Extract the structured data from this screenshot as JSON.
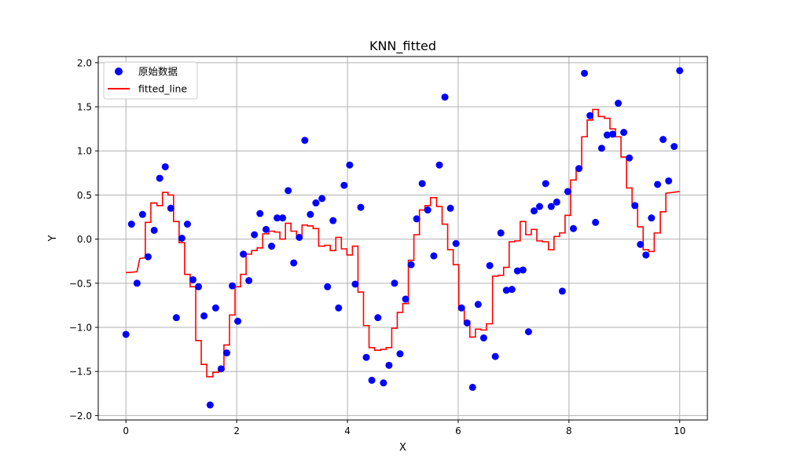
{
  "chart_data": {
    "type": "scatter",
    "title": "KNN_fitted",
    "xlabel": "X",
    "ylabel": "Y",
    "xlim": [
      -0.5,
      10.5
    ],
    "ylim": [
      -2.05,
      2.07
    ],
    "xticks": [
      0,
      2,
      4,
      6,
      8,
      10
    ],
    "yticks": [
      -2.0,
      -1.5,
      -1.0,
      -0.5,
      0.0,
      0.5,
      1.0,
      1.5,
      2.0
    ],
    "grid": true,
    "legend_position": "top-left",
    "series": [
      {
        "name": "原始数据",
        "kind": "scatter",
        "color": "#0000ff",
        "points": [
          [
            0.0,
            -1.08
          ],
          [
            0.1,
            0.17
          ],
          [
            0.2,
            -0.5
          ],
          [
            0.3,
            0.28
          ],
          [
            0.4,
            -0.2
          ],
          [
            0.51,
            0.1
          ],
          [
            0.61,
            0.69
          ],
          [
            0.71,
            0.82
          ],
          [
            0.81,
            0.35
          ],
          [
            0.91,
            -0.89
          ],
          [
            1.01,
            0.01
          ],
          [
            1.11,
            0.17
          ],
          [
            1.21,
            -0.46
          ],
          [
            1.31,
            -0.54
          ],
          [
            1.41,
            -0.87
          ],
          [
            1.52,
            -1.88
          ],
          [
            1.62,
            -0.78
          ],
          [
            1.72,
            -1.47
          ],
          [
            1.82,
            -1.29
          ],
          [
            1.92,
            -0.53
          ],
          [
            2.02,
            -0.93
          ],
          [
            2.12,
            -0.17
          ],
          [
            2.22,
            -0.47
          ],
          [
            2.32,
            0.05
          ],
          [
            2.42,
            0.29
          ],
          [
            2.53,
            0.11
          ],
          [
            2.63,
            -0.08
          ],
          [
            2.73,
            0.24
          ],
          [
            2.83,
            0.24
          ],
          [
            2.93,
            0.55
          ],
          [
            3.03,
            -0.27
          ],
          [
            3.13,
            0.02
          ],
          [
            3.23,
            1.12
          ],
          [
            3.33,
            0.28
          ],
          [
            3.43,
            0.41
          ],
          [
            3.54,
            0.46
          ],
          [
            3.64,
            -0.54
          ],
          [
            3.74,
            0.21
          ],
          [
            3.84,
            -0.78
          ],
          [
            3.94,
            0.61
          ],
          [
            4.04,
            0.84
          ],
          [
            4.14,
            -0.51
          ],
          [
            4.24,
            0.36
          ],
          [
            4.34,
            -1.34
          ],
          [
            4.44,
            -1.6
          ],
          [
            4.55,
            -0.89
          ],
          [
            4.65,
            -1.63
          ],
          [
            4.75,
            -1.43
          ],
          [
            4.85,
            -0.5
          ],
          [
            4.95,
            -1.3
          ],
          [
            5.05,
            -0.68
          ],
          [
            5.15,
            -0.29
          ],
          [
            5.25,
            0.23
          ],
          [
            5.35,
            0.63
          ],
          [
            5.45,
            0.33
          ],
          [
            5.56,
            -0.19
          ],
          [
            5.66,
            0.84
          ],
          [
            5.76,
            1.61
          ],
          [
            5.86,
            0.35
          ],
          [
            5.96,
            -0.05
          ],
          [
            6.06,
            -0.78
          ],
          [
            6.16,
            -0.95
          ],
          [
            6.26,
            -1.68
          ],
          [
            6.36,
            -0.74
          ],
          [
            6.46,
            -1.12
          ],
          [
            6.57,
            -0.3
          ],
          [
            6.67,
            -1.33
          ],
          [
            6.77,
            0.07
          ],
          [
            6.87,
            -0.58
          ],
          [
            6.97,
            -0.57
          ],
          [
            7.07,
            -0.36
          ],
          [
            7.17,
            -0.35
          ],
          [
            7.27,
            -1.05
          ],
          [
            7.37,
            0.32
          ],
          [
            7.47,
            0.37
          ],
          [
            7.58,
            0.63
          ],
          [
            7.68,
            0.37
          ],
          [
            7.78,
            0.42
          ],
          [
            7.88,
            -0.59
          ],
          [
            7.98,
            0.54
          ],
          [
            8.08,
            0.12
          ],
          [
            8.18,
            0.8
          ],
          [
            8.28,
            1.88
          ],
          [
            8.38,
            1.4
          ],
          [
            8.48,
            0.19
          ],
          [
            8.59,
            1.03
          ],
          [
            8.69,
            1.18
          ],
          [
            8.79,
            1.19
          ],
          [
            8.89,
            1.54
          ],
          [
            8.99,
            1.21
          ],
          [
            9.09,
            0.92
          ],
          [
            9.19,
            0.38
          ],
          [
            9.29,
            -0.06
          ],
          [
            9.39,
            -0.18
          ],
          [
            9.49,
            0.24
          ],
          [
            9.6,
            0.62
          ],
          [
            9.7,
            1.13
          ],
          [
            9.8,
            0.66
          ],
          [
            9.9,
            1.05
          ],
          [
            10.0,
            1.91
          ]
        ]
      },
      {
        "name": "fitted_line",
        "kind": "line",
        "color": "#ff0000",
        "points": [
          [
            0.0,
            -0.38
          ],
          [
            0.2,
            -0.37
          ],
          [
            0.25,
            -0.22
          ],
          [
            0.35,
            -0.21
          ],
          [
            0.35,
            0.19
          ],
          [
            0.45,
            0.19
          ],
          [
            0.45,
            0.41
          ],
          [
            0.56,
            0.41
          ],
          [
            0.56,
            0.38
          ],
          [
            0.66,
            0.38
          ],
          [
            0.66,
            0.53
          ],
          [
            0.76,
            0.53
          ],
          [
            0.76,
            0.5
          ],
          [
            0.86,
            0.5
          ],
          [
            0.86,
            0.2
          ],
          [
            0.96,
            0.2
          ],
          [
            0.96,
            -0.04
          ],
          [
            1.06,
            -0.04
          ],
          [
            1.06,
            -0.4
          ],
          [
            1.16,
            -0.4
          ],
          [
            1.16,
            -0.54
          ],
          [
            1.26,
            -0.54
          ],
          [
            1.26,
            -1.15
          ],
          [
            1.36,
            -1.15
          ],
          [
            1.36,
            -1.42
          ],
          [
            1.46,
            -1.42
          ],
          [
            1.46,
            -1.56
          ],
          [
            1.57,
            -1.56
          ],
          [
            1.57,
            -1.51
          ],
          [
            1.67,
            -1.51
          ],
          [
            1.67,
            -1.48
          ],
          [
            1.77,
            -1.48
          ],
          [
            1.77,
            -1.2
          ],
          [
            1.87,
            -1.2
          ],
          [
            1.87,
            -0.86
          ],
          [
            1.97,
            -0.86
          ],
          [
            1.97,
            -0.54
          ],
          [
            2.07,
            -0.54
          ],
          [
            2.07,
            -0.4
          ],
          [
            2.17,
            -0.4
          ],
          [
            2.17,
            -0.17
          ],
          [
            2.27,
            -0.17
          ],
          [
            2.27,
            -0.13
          ],
          [
            2.37,
            -0.13
          ],
          [
            2.37,
            -0.1
          ],
          [
            2.47,
            -0.1
          ],
          [
            2.47,
            0.06
          ],
          [
            2.58,
            0.06
          ],
          [
            2.58,
            0.09
          ],
          [
            2.68,
            0.09
          ],
          [
            2.68,
            0.08
          ],
          [
            2.78,
            0.08
          ],
          [
            2.78,
            0.0
          ],
          [
            2.88,
            0.0
          ],
          [
            2.88,
            0.18
          ],
          [
            2.98,
            0.18
          ],
          [
            2.98,
            0.09
          ],
          [
            3.08,
            0.09
          ],
          [
            3.08,
            0.04
          ],
          [
            3.18,
            0.04
          ],
          [
            3.18,
            0.16
          ],
          [
            3.28,
            0.16
          ],
          [
            3.28,
            0.15
          ],
          [
            3.38,
            0.15
          ],
          [
            3.38,
            0.12
          ],
          [
            3.48,
            0.12
          ],
          [
            3.48,
            -0.08
          ],
          [
            3.59,
            -0.08
          ],
          [
            3.59,
            -0.07
          ],
          [
            3.69,
            -0.07
          ],
          [
            3.69,
            -0.13
          ],
          [
            3.79,
            -0.13
          ],
          [
            3.79,
            0.02
          ],
          [
            3.89,
            0.02
          ],
          [
            3.89,
            -0.11
          ],
          [
            3.99,
            -0.11
          ],
          [
            3.99,
            -0.18
          ],
          [
            4.09,
            -0.18
          ],
          [
            4.09,
            -0.08
          ],
          [
            4.19,
            -0.08
          ],
          [
            4.19,
            -0.6
          ],
          [
            4.29,
            -0.6
          ],
          [
            4.29,
            -0.98
          ],
          [
            4.39,
            -0.98
          ],
          [
            4.39,
            -1.23
          ],
          [
            4.49,
            -1.23
          ],
          [
            4.49,
            -1.26
          ],
          [
            4.6,
            -1.26
          ],
          [
            4.6,
            -1.25
          ],
          [
            4.7,
            -1.25
          ],
          [
            4.7,
            -1.23
          ],
          [
            4.8,
            -1.23
          ],
          [
            4.8,
            -1.01
          ],
          [
            4.9,
            -1.01
          ],
          [
            4.9,
            -0.83
          ],
          [
            5.0,
            -0.83
          ],
          [
            5.0,
            -0.73
          ],
          [
            5.1,
            -0.73
          ],
          [
            5.1,
            -0.24
          ],
          [
            5.2,
            -0.24
          ],
          [
            5.2,
            0.05
          ],
          [
            5.3,
            0.05
          ],
          [
            5.3,
            0.33
          ],
          [
            5.4,
            0.33
          ],
          [
            5.4,
            0.38
          ],
          [
            5.5,
            0.38
          ],
          [
            5.5,
            0.47
          ],
          [
            5.61,
            0.47
          ],
          [
            5.61,
            0.37
          ],
          [
            5.71,
            0.37
          ],
          [
            5.71,
            0.17
          ],
          [
            5.81,
            0.17
          ],
          [
            5.81,
            -0.12
          ],
          [
            5.91,
            -0.12
          ],
          [
            5.91,
            -0.29
          ],
          [
            6.01,
            -0.29
          ],
          [
            6.01,
            -0.8
          ],
          [
            6.11,
            -0.8
          ],
          [
            6.11,
            -0.93
          ],
          [
            6.21,
            -0.93
          ],
          [
            6.21,
            -1.11
          ],
          [
            6.31,
            -1.11
          ],
          [
            6.31,
            -1.02
          ],
          [
            6.41,
            -1.02
          ],
          [
            6.41,
            -1.03
          ],
          [
            6.51,
            -1.03
          ],
          [
            6.51,
            -0.96
          ],
          [
            6.62,
            -0.96
          ],
          [
            6.62,
            -0.42
          ],
          [
            6.72,
            -0.42
          ],
          [
            6.72,
            -0.41
          ],
          [
            6.82,
            -0.41
          ],
          [
            6.82,
            -0.32
          ],
          [
            6.92,
            -0.32
          ],
          [
            6.92,
            -0.03
          ],
          [
            7.02,
            -0.03
          ],
          [
            7.02,
            -0.02
          ],
          [
            7.12,
            -0.02
          ],
          [
            7.12,
            0.2
          ],
          [
            7.22,
            0.2
          ],
          [
            7.22,
            0.05
          ],
          [
            7.32,
            0.05
          ],
          [
            7.32,
            0.11
          ],
          [
            7.42,
            0.11
          ],
          [
            7.42,
            -0.02
          ],
          [
            7.52,
            -0.02
          ],
          [
            7.52,
            -0.03
          ],
          [
            7.63,
            -0.03
          ],
          [
            7.63,
            -0.12
          ],
          [
            7.73,
            -0.12
          ],
          [
            7.73,
            0.03
          ],
          [
            7.83,
            0.03
          ],
          [
            7.83,
            0.07
          ],
          [
            7.93,
            0.07
          ],
          [
            7.93,
            0.27
          ],
          [
            8.03,
            0.27
          ],
          [
            8.03,
            0.67
          ],
          [
            8.13,
            0.67
          ],
          [
            8.13,
            0.81
          ],
          [
            8.23,
            0.81
          ],
          [
            8.23,
            1.16
          ],
          [
            8.33,
            1.16
          ],
          [
            8.33,
            1.35
          ],
          [
            8.43,
            1.35
          ],
          [
            8.43,
            1.47
          ],
          [
            8.53,
            1.47
          ],
          [
            8.53,
            1.39
          ],
          [
            8.64,
            1.39
          ],
          [
            8.64,
            1.37
          ],
          [
            8.74,
            1.37
          ],
          [
            8.74,
            1.25
          ],
          [
            8.84,
            1.25
          ],
          [
            8.84,
            1.16
          ],
          [
            8.94,
            1.16
          ],
          [
            8.94,
            0.93
          ],
          [
            9.04,
            0.93
          ],
          [
            9.04,
            0.58
          ],
          [
            9.14,
            0.58
          ],
          [
            9.14,
            0.4
          ],
          [
            9.24,
            0.4
          ],
          [
            9.24,
            0.14
          ],
          [
            9.34,
            0.14
          ],
          [
            9.34,
            -0.12
          ],
          [
            9.44,
            -0.12
          ],
          [
            9.44,
            -0.14
          ],
          [
            9.54,
            -0.14
          ],
          [
            9.54,
            0.07
          ],
          [
            9.65,
            0.07
          ],
          [
            9.65,
            0.31
          ],
          [
            9.75,
            0.31
          ],
          [
            9.75,
            0.52
          ],
          [
            10.0,
            0.54
          ]
        ]
      }
    ]
  }
}
